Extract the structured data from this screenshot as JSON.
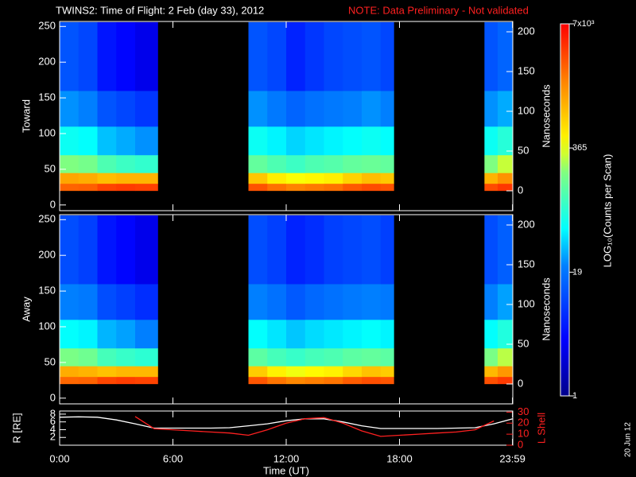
{
  "stamp": "20 Jun 12",
  "colorbar": {
    "label": "LOG₁₀(Counts per Scan)",
    "log": true,
    "lim": [
      1,
      7000
    ],
    "ticks": [
      {
        "value": 7000,
        "label": "7x10³"
      },
      365,
      19,
      1
    ]
  },
  "chart_data": [
    {
      "type": "heatmap",
      "title": "TWINS2: Time of Flight:  2 Feb (day  33), 2012",
      "note": "NOTE: Data Preliminary - Not validated",
      "note_color": "#ff2020",
      "ylabel": "Toward",
      "y2label": "Nanoseconds",
      "xlim": [
        0,
        24
      ],
      "ylim": [
        -8,
        257
      ],
      "yticks": [
        0,
        50,
        100,
        150,
        200,
        250
      ],
      "y2lim": [
        -25,
        213
      ],
      "y2ticks": [
        0,
        50,
        100,
        150,
        200
      ],
      "xbins": [
        0,
        1,
        2,
        3,
        4,
        5.2,
        10,
        11,
        12,
        13,
        14,
        15,
        16,
        17,
        17.7,
        22.5,
        23.2,
        24
      ],
      "ybins": [
        20,
        30,
        45,
        70,
        110,
        160,
        256
      ],
      "values": [
        [
          2500,
          2600,
          3500,
          3800,
          3600,
          null,
          3000,
          2200,
          1800,
          2000,
          2200,
          2800,
          3200,
          3000,
          null,
          3200,
          4000
        ],
        [
          1200,
          1100,
          900,
          1000,
          1000,
          null,
          800,
          500,
          400,
          450,
          500,
          700,
          900,
          800,
          null,
          1000,
          1500
        ],
        [
          200,
          180,
          120,
          100,
          90,
          null,
          150,
          120,
          100,
          120,
          130,
          150,
          160,
          150,
          null,
          200,
          300
        ],
        [
          60,
          55,
          35,
          30,
          25,
          null,
          60,
          50,
          40,
          45,
          50,
          55,
          60,
          55,
          null,
          60,
          80
        ],
        [
          25,
          22,
          12,
          10,
          8,
          null,
          25,
          20,
          15,
          18,
          20,
          22,
          25,
          22,
          null,
          25,
          30
        ],
        [
          12,
          10,
          5,
          4,
          3,
          null,
          12,
          10,
          6,
          8,
          10,
          11,
          12,
          10,
          null,
          12,
          15
        ]
      ]
    },
    {
      "type": "heatmap",
      "ylabel": "Away",
      "y2label": "Nanoseconds",
      "xlim": [
        0,
        24
      ],
      "ylim": [
        -8,
        257
      ],
      "yticks": [
        0,
        50,
        100,
        150,
        200,
        250
      ],
      "y2lim": [
        -25,
        213
      ],
      "y2ticks": [
        0,
        50,
        100,
        150,
        200
      ],
      "xbins": [
        0,
        1,
        2,
        3,
        4,
        5.2,
        10,
        11,
        12,
        13,
        14,
        15,
        16,
        17,
        17.7,
        22.5,
        23.2,
        24
      ],
      "ybins": [
        20,
        30,
        45,
        70,
        110,
        160,
        256
      ],
      "values": [
        [
          2400,
          2500,
          3400,
          3700,
          3500,
          null,
          2900,
          2100,
          1700,
          1900,
          2100,
          2700,
          3100,
          2900,
          null,
          3100,
          3800
        ],
        [
          1100,
          1000,
          850,
          950,
          950,
          null,
          750,
          480,
          380,
          430,
          480,
          650,
          850,
          750,
          null,
          950,
          1400
        ],
        [
          190,
          170,
          110,
          95,
          85,
          null,
          140,
          110,
          95,
          110,
          120,
          140,
          150,
          140,
          null,
          190,
          280
        ],
        [
          55,
          50,
          32,
          28,
          22,
          null,
          55,
          45,
          36,
          42,
          46,
          50,
          55,
          50,
          null,
          55,
          75
        ],
        [
          22,
          20,
          11,
          9,
          7,
          null,
          22,
          18,
          13,
          16,
          18,
          20,
          22,
          20,
          null,
          22,
          28
        ],
        [
          11,
          9,
          5,
          4,
          3,
          null,
          11,
          9,
          6,
          7,
          9,
          10,
          11,
          9,
          null,
          11,
          14
        ]
      ]
    },
    {
      "type": "line",
      "ylabel": "R [RE]",
      "y2label": "L Shell",
      "xlabel": "Time (UT)",
      "xlim": [
        0,
        24
      ],
      "ylim": [
        0,
        8.8
      ],
      "yticks": [
        2,
        4,
        6,
        8
      ],
      "y2lim": [
        0,
        31
      ],
      "y2ticks": [
        0,
        10,
        20,
        30
      ],
      "xticks": [
        {
          "value": 0,
          "label": "0:00"
        },
        {
          "value": 6,
          "label": "6:00"
        },
        {
          "value": 12,
          "label": "12:00"
        },
        {
          "value": 18,
          "label": "18:00"
        },
        {
          "value": 23.983,
          "label": "23:59"
        }
      ],
      "x": [
        0,
        1,
        2,
        3,
        4,
        5,
        6,
        7,
        8,
        9,
        10,
        11,
        12,
        13,
        14,
        15,
        16,
        17,
        18,
        19,
        20,
        21,
        22,
        23,
        24
      ],
      "series": [
        {
          "name": "R",
          "color": "#ffffff",
          "values": [
            7.2,
            7.3,
            7.2,
            6.5,
            5.5,
            4.4,
            4.4,
            4.4,
            4.4,
            4.5,
            5.0,
            5.5,
            6.3,
            6.8,
            6.8,
            6.0,
            5.0,
            4.3,
            4.3,
            4.3,
            4.3,
            4.4,
            4.5,
            5.5,
            6.8
          ]
        },
        {
          "name": "L",
          "color": "#ff2020",
          "axis": "y2",
          "values": [
            null,
            null,
            null,
            null,
            26,
            15,
            14,
            13,
            12,
            11,
            9,
            14,
            20,
            24,
            25,
            20,
            13,
            8,
            9,
            10,
            11,
            12,
            14,
            22,
            null
          ]
        }
      ]
    }
  ]
}
